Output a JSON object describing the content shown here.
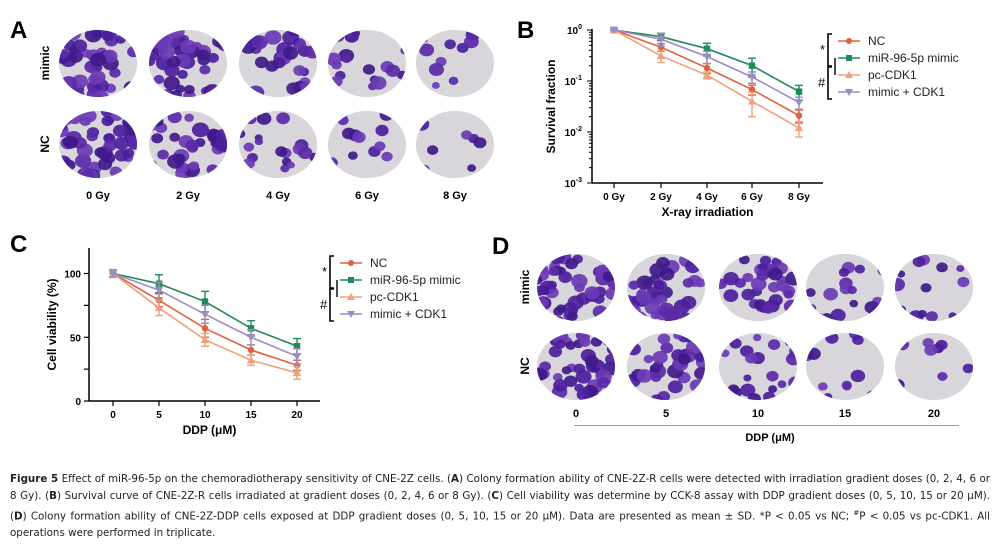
{
  "figure": {
    "panels": {
      "A": {
        "label": "A",
        "row_labels": [
          "mimic",
          "NC"
        ],
        "col_labels": [
          "0 Gy",
          "2 Gy",
          "4 Gy",
          "6 Gy",
          "8  Gy"
        ],
        "colony_density": {
          "mimic": [
            0.95,
            0.8,
            0.55,
            0.35,
            0.12
          ],
          "NC": [
            0.95,
            0.65,
            0.35,
            0.22,
            0.08
          ]
        }
      },
      "B": {
        "label": "B"
      },
      "C": {
        "label": "C"
      },
      "D": {
        "label": "D",
        "row_labels": [
          "mimic",
          "NC"
        ],
        "col_labels": [
          "0",
          "5",
          "10",
          "15",
          "20"
        ],
        "axis_title": "DDP (μM)",
        "colony_density": {
          "mimic": [
            0.95,
            0.85,
            0.65,
            0.35,
            0.25
          ],
          "NC": [
            0.9,
            0.7,
            0.45,
            0.15,
            0.08
          ]
        }
      }
    },
    "caption": {
      "figure_no": "Figure 5",
      "text_1": " Effect of miR-96-5p on the chemoradiotherapy sensitivity of CNE-2Z cells. (",
      "A": "A",
      "text_2": ") Colony formation ability of CNE-2Z-R cells were detected with irradiation gradient doses (0, 2, 4, 6 or 8 Gy). (",
      "B": "B",
      "text_3": ") Survival curve of CNE-2Z-R cells irradiated at gradient doses (0, 2, 4, 6 or 8 Gy). (",
      "C": "C",
      "text_4": ") Cell viability was determine by CCK-8 assay with DDP gradient doses (0, 5, 10, 15 or 20 μM). (",
      "D": "D",
      "text_5": ") Colony formation ability of CNE-2Z-DDP cells exposed at DDP gradient doses (0, 5, 10, 15 or 20 μM). Data are presented as mean ± SD. ",
      "star": "*",
      "text_6": "P < 0.05 vs NC; ",
      "hash": "#",
      "text_7": "P < 0.05 vs pc-CDK1. All operations were performed in triplicate."
    }
  },
  "chart_data": [
    {
      "panel": "B",
      "type": "line",
      "title": "",
      "xlabel": "X-ray irradiation",
      "ylabel": "Survival fraction",
      "yscale": "log",
      "ylim": [
        0.001,
        1
      ],
      "yticks": [
        {
          "value": 1,
          "label_base": "10",
          "label_exp": "0"
        },
        {
          "value": 0.1,
          "label_base": "10",
          "label_exp": "-1"
        },
        {
          "value": 0.01,
          "label_base": "10",
          "label_exp": "-2"
        },
        {
          "value": 0.001,
          "label_base": "10",
          "label_exp": "-3"
        }
      ],
      "categories": [
        "0 Gy",
        "2 Gy",
        "4 Gy",
        "6 Gy",
        "8 Gy"
      ],
      "legend_position": "right",
      "series": [
        {
          "name": "NC",
          "color": "#e0603e",
          "marker": "circle",
          "values": [
            1.0,
            0.46,
            0.18,
            0.068,
            0.021
          ],
          "err": [
            0.03,
            0.08,
            0.04,
            0.015,
            0.006
          ]
        },
        {
          "name": "miR-96-5p mimic",
          "color": "#1f8a5a",
          "marker": "square",
          "values": [
            1.0,
            0.74,
            0.43,
            0.2,
            0.062
          ],
          "err": [
            0.03,
            0.12,
            0.12,
            0.08,
            0.02
          ]
        },
        {
          "name": "pc-CDK1",
          "color": "#f0a07a",
          "marker": "triangle-up",
          "values": [
            1.0,
            0.31,
            0.13,
            0.04,
            0.012
          ],
          "err": [
            0.03,
            0.08,
            0.02,
            0.02,
            0.004
          ]
        },
        {
          "name": "mimic + CDK1",
          "color": "#9c8cc4",
          "marker": "triangle-down",
          "values": [
            1.0,
            0.66,
            0.3,
            0.12,
            0.038
          ],
          "err": [
            0.03,
            0.18,
            0.08,
            0.03,
            0.01
          ]
        }
      ],
      "significance": [
        {
          "symbol": "*",
          "between": [
            "NC",
            "miR-96-5p mimic"
          ]
        },
        {
          "symbol": "#",
          "between": [
            "pc-CDK1",
            "mimic + CDK1"
          ]
        }
      ]
    },
    {
      "panel": "C",
      "type": "line",
      "title": "",
      "xlabel": "DDP (μM)",
      "ylabel": "Cell viability (%)",
      "ylim": [
        0,
        120
      ],
      "yticks": [
        0,
        50,
        100
      ],
      "categories": [
        "0",
        "5",
        "10",
        "15",
        "20"
      ],
      "legend_position": "right",
      "series": [
        {
          "name": "NC",
          "color": "#e0603e",
          "marker": "circle",
          "values": [
            100,
            79,
            57,
            40,
            28
          ],
          "err": [
            3,
            5,
            7,
            4,
            4
          ]
        },
        {
          "name": "miR-96-5p mimic",
          "color": "#1f8a5a",
          "marker": "square",
          "values": [
            100,
            92,
            78,
            57,
            43
          ],
          "err": [
            3,
            7,
            8,
            6,
            6
          ]
        },
        {
          "name": "pc-CDK1",
          "color": "#f0a07a",
          "marker": "triangle-up",
          "values": [
            100,
            73,
            48,
            32,
            22
          ],
          "err": [
            3,
            6,
            5,
            4,
            5
          ]
        },
        {
          "name": "mimic + CDK1",
          "color": "#9c8cc4",
          "marker": "triangle-down",
          "values": [
            100,
            87,
            68,
            50,
            35
          ],
          "err": [
            3,
            6,
            7,
            6,
            6
          ]
        }
      ],
      "significance": [
        {
          "symbol": "*",
          "between": [
            "NC",
            "miR-96-5p mimic"
          ]
        },
        {
          "symbol": "#",
          "between": [
            "pc-CDK1",
            "mimic + CDK1"
          ]
        }
      ]
    }
  ]
}
